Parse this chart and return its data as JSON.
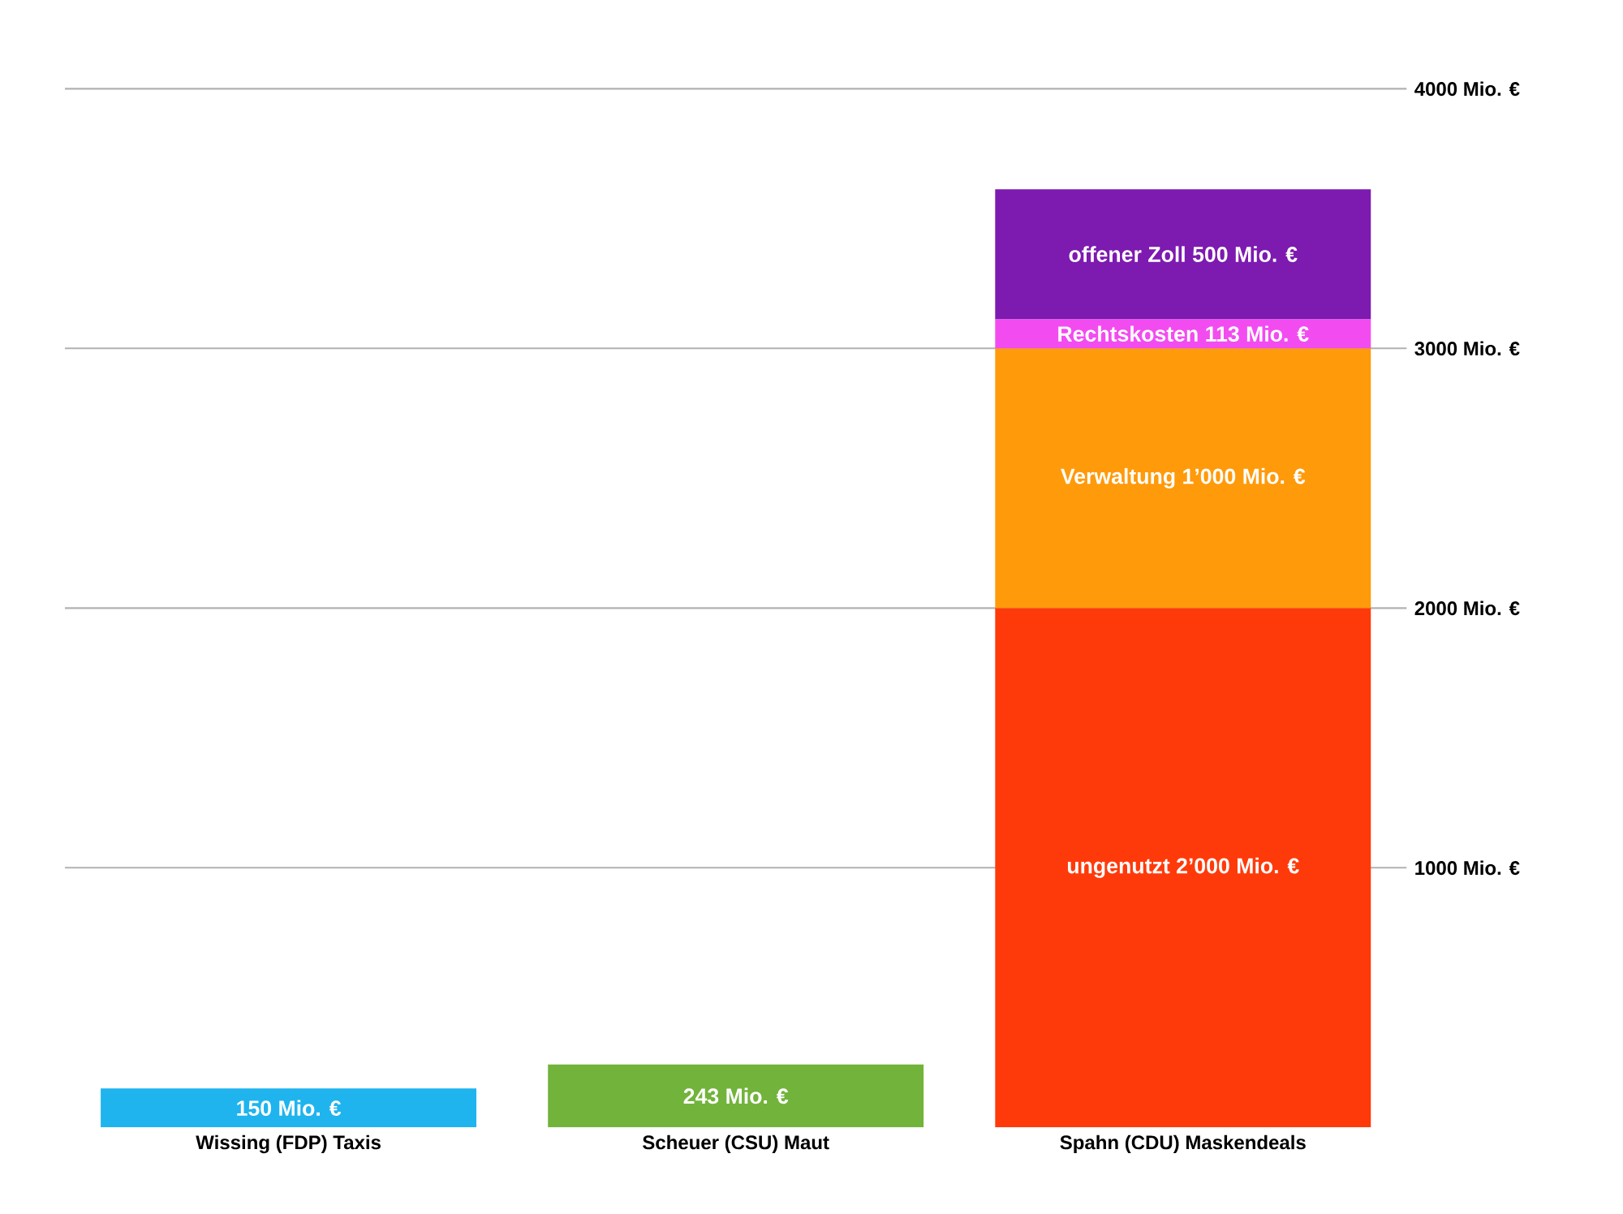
{
  "chart_data": {
    "type": "bar",
    "stacked": true,
    "categories": [
      "Wissing (FDP) Taxis",
      "Scheuer (CSU) Maut",
      "Spahn (CDU) Maskendeals"
    ],
    "series": [
      {
        "colors": [
          "#1fb4ee",
          "#72b33b",
          "#ff3a0a"
        ],
        "values": [
          150,
          243,
          2000
        ],
        "value_labels": [
          "150 Mio. €",
          "243 Mio. €",
          "ungenutzt 2’000 Mio. €"
        ]
      },
      {
        "color": "#ff9a0a",
        "values": [
          null,
          null,
          1000
        ],
        "value_labels": [
          null,
          null,
          "Verwaltung  1’000 Mio. €"
        ]
      },
      {
        "color": "#f24cf0",
        "values": [
          null,
          null,
          113
        ],
        "value_labels": [
          null,
          null,
          "Rechtskosten 113 Mio. €"
        ]
      },
      {
        "color": "#7d1ab0",
        "values": [
          null,
          null,
          500
        ],
        "value_labels": [
          null,
          null,
          "offener Zoll 500 Mio. €"
        ]
      }
    ],
    "ylim": [
      0,
      4000
    ],
    "yticks": [
      {
        "value": 1000,
        "label": "1000 Mio. €"
      },
      {
        "value": 2000,
        "label": "2000 Mio. €"
      },
      {
        "value": 3000,
        "label": "3000 Mio. €"
      },
      {
        "value": 4000,
        "label": "4000 Mio. €"
      }
    ],
    "grid": "y"
  }
}
